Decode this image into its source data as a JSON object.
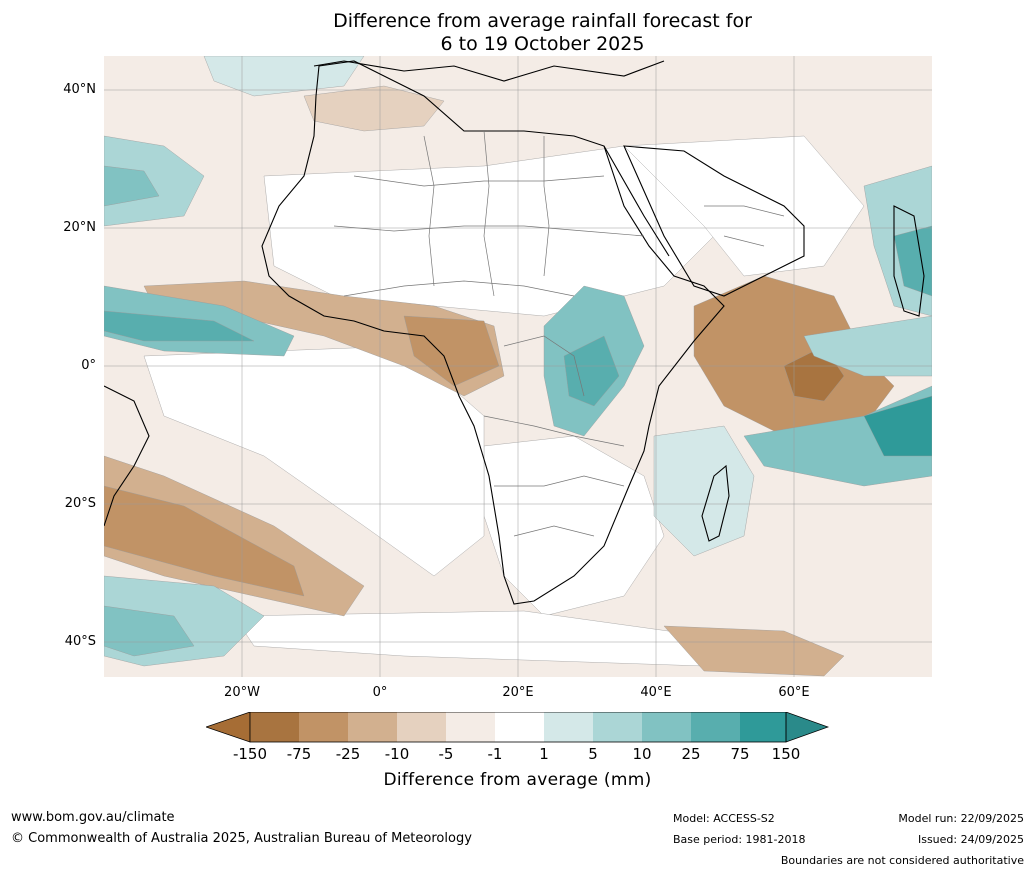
{
  "title": {
    "line1": "Difference from average rainfall forecast for",
    "line2": "6 to 19 October 2025"
  },
  "axes": {
    "lat_labels": [
      "40°N",
      "20°N",
      "0°",
      "20°S",
      "40°S"
    ],
    "lon_labels": [
      "20°W",
      "0°",
      "20°E",
      "40°E",
      "60°E"
    ]
  },
  "colorbar": {
    "title": "Difference from average (mm)",
    "ticks": [
      "-150",
      "-75",
      "-25",
      "-10",
      "-5",
      "-1",
      "1",
      "5",
      "10",
      "25",
      "75",
      "150"
    ],
    "colors": {
      "extend_low": "#a66d35",
      "c1": "#a87440",
      "c2": "#c19366",
      "c3": "#d2b08f",
      "c4": "#e5d1bf",
      "c5": "#f4ece6",
      "c6": "#ffffff",
      "c7": "#d4e8e8",
      "c8": "#abd6d6",
      "c9": "#81c2c2",
      "c10": "#58aeae",
      "c11": "#2f9a99",
      "extend_high": "#2a8a8a"
    }
  },
  "footer": {
    "url": "www.bom.gov.au/climate",
    "copyright": "© Commonwealth of Australia 2025, Australian Bureau of Meteorology",
    "model": "Model: ACCESS-S2",
    "base_period": "Base period: 1981-2018",
    "model_run": "Model run: 22/09/2025",
    "issued": "Issued: 24/09/2025",
    "disclaimer": "Boundaries are not considered authoritative"
  }
}
